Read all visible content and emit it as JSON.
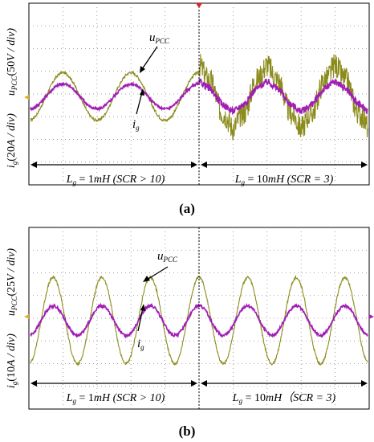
{
  "chart_data": [
    {
      "type": "line",
      "panel_label": "(a)",
      "ylabel_top": {
        "var": "u",
        "sub": "PCC",
        "scale": "(50",
        "unit": "V / div)"
      },
      "ylabel_bottom": {
        "var": "i",
        "sub": "g",
        "scale": "(20",
        "unit": "A / div)"
      },
      "annotations": [
        {
          "var": "u",
          "sub": "PCC"
        },
        {
          "var": "i",
          "sub": "g"
        }
      ],
      "regions": [
        {
          "L": "L",
          "Lsub": "g",
          "eq": " = 1",
          "unit": "mH",
          "cond": "  (SCR > 10)"
        },
        {
          "L": "L",
          "Lsub": "g",
          "eq": " = 10",
          "unit": "mH",
          "cond": "  (SCR = 3)"
        }
      ],
      "grid": {
        "x_divisions": 10,
        "y_divisions": 8
      },
      "cycles": 5,
      "series": [
        {
          "name": "",
          "color": "#8c8c1e",
          "amp_div_left": 1.05,
          "amp_div_right": 1.25,
          "distortion_right": 0.55
        },
        {
          "name": "",
          "color": "#a01eb4",
          "amp_div_left": 0.55,
          "amp_div_right": 0.6,
          "distortion_right": 0.15
        }
      ]
    },
    {
      "type": "line",
      "panel_label": "(b)",
      "ylabel_top": {
        "var": "u",
        "sub": "PCC",
        "scale": "(25",
        "unit": "V / div)"
      },
      "ylabel_bottom": {
        "var": "i",
        "sub": "g",
        "scale": "(10",
        "unit": "A / div)"
      },
      "annotations": [
        {
          "var": "u",
          "sub": "PCC"
        },
        {
          "var": "i",
          "sub": "g"
        }
      ],
      "regions": [
        {
          "L": "L",
          "Lsub": "g",
          "eq": " = 1",
          "unit": "mH",
          "cond": "  (SCR > 10)"
        },
        {
          "L": "L",
          "Lsub": "g",
          "eq": " = 10",
          "unit": "mH",
          "cond": "（SCR = 3)"
        }
      ],
      "grid": {
        "x_divisions": 10,
        "y_divisions": 8
      },
      "cycles": 7,
      "series": [
        {
          "name": "",
          "color": "#8c8c1e",
          "amp_div_left": 1.9,
          "amp_div_right": 1.9,
          "distortion_right": 0.02
        },
        {
          "name": "",
          "color": "#a01eb4",
          "amp_div_left": 0.65,
          "amp_div_right": 0.65,
          "distortion_right": 0.02
        }
      ]
    }
  ]
}
